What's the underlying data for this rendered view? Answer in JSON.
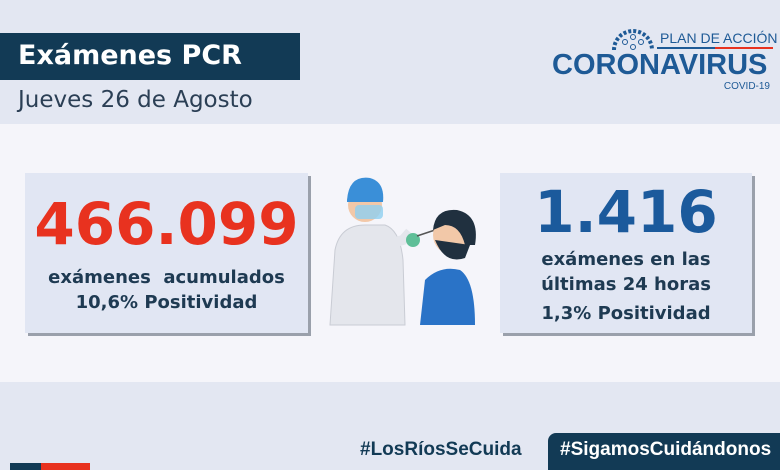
{
  "header": {
    "title": "Exámenes PCR",
    "date": "Jueves 26 de Agosto"
  },
  "logo": {
    "line1": "PLAN DE ACCIÓN",
    "line2": "CORONAVIRUS",
    "line3": "COVID-19"
  },
  "cumulative": {
    "value": "466.099",
    "label": "exámenes  acumulados",
    "positivity": "10,6% Positividad",
    "color": "#e8321f"
  },
  "daily": {
    "value": "1.416",
    "label1": "exámenes en las",
    "label2": "últimas 24 horas",
    "positivity": "1,3% Positividad",
    "color": "#1b5a9c"
  },
  "footer": {
    "hashtag1": "#LosRíosSeCuida",
    "hashtag2": "#SigamosCuidándonos"
  },
  "colors": {
    "navy": "#123a55",
    "red": "#e8321f",
    "background": "#e3e7f2"
  }
}
